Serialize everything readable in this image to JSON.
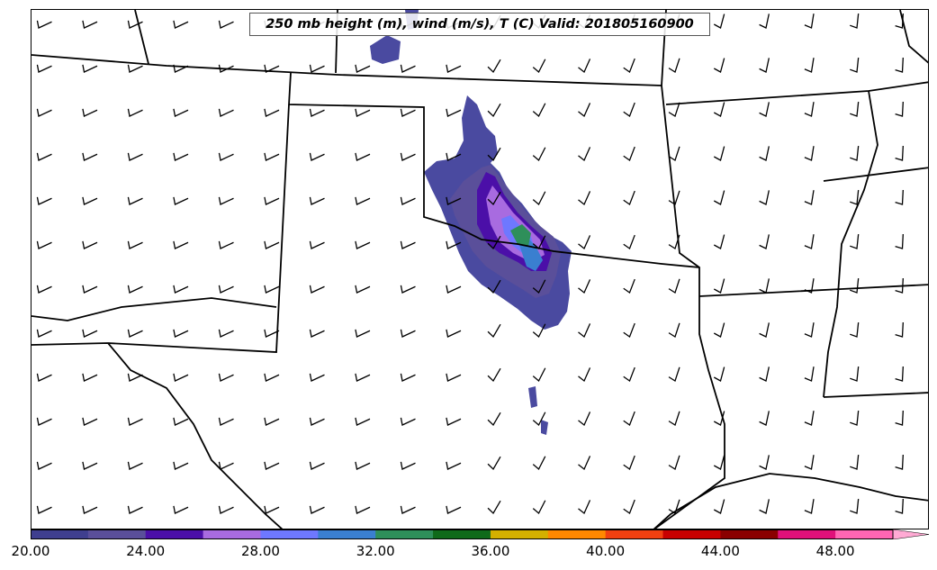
{
  "title": "250 mb height (m), wind (m/s), T (C) Valid: 201805160900",
  "colorbar": {
    "min": 20,
    "max": 52,
    "step": 2,
    "colors": [
      "#3f3f8f",
      "#5a4f9a",
      "#4b0fa8",
      "#a86be0",
      "#6e78ff",
      "#3a7fd0",
      "#2e8f5a",
      "#0f6a1a",
      "#d4b000",
      "#ff8800",
      "#f04010",
      "#c80000",
      "#8a0000",
      "#e0107a",
      "#ff66b3",
      "#ffaad4"
    ],
    "tick_labels": [
      "20.00",
      "24.00",
      "28.00",
      "32.00",
      "36.00",
      "40.00",
      "44.00",
      "48.00"
    ]
  },
  "wind_barb_icon": "wind-barb-icon"
}
